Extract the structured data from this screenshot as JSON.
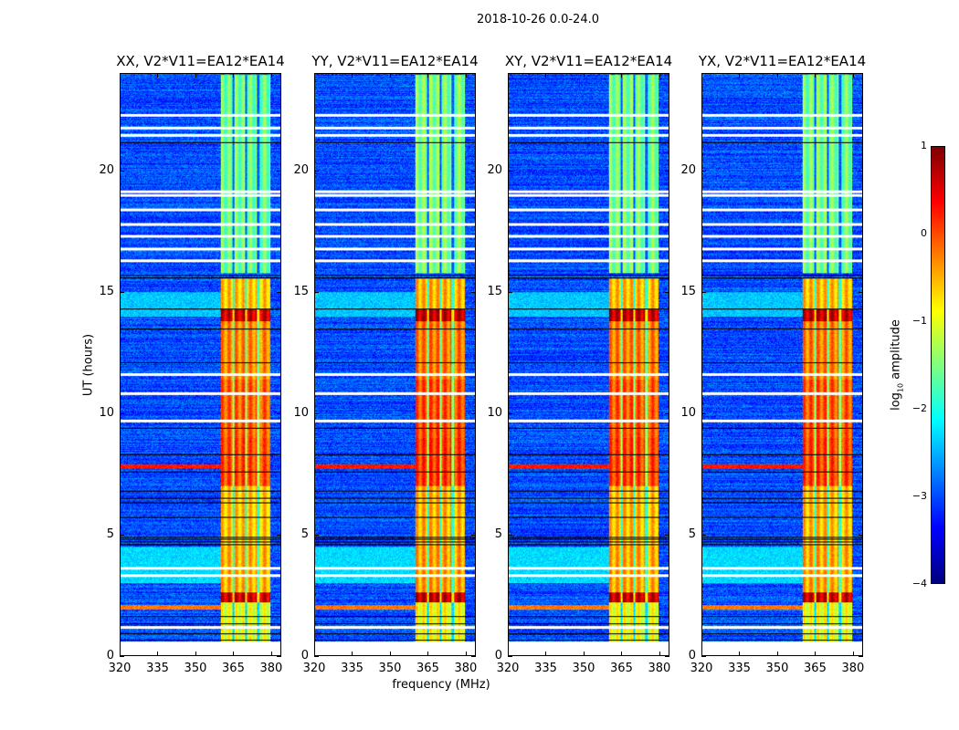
{
  "chart_data": {
    "type": "heatmap",
    "title": "2018-10-26 0.0-24.0",
    "xlabel": "frequency (MHz)",
    "ylabel": "UT (hours)",
    "xlim": [
      320,
      384
    ],
    "ylim": [
      0,
      24
    ],
    "xticks": [
      320,
      335,
      350,
      365,
      380
    ],
    "yticks": [
      0,
      5,
      10,
      15,
      20
    ],
    "colormap": "jet",
    "panels": [
      {
        "title": "XX, V2*V11=EA12*EA14",
        "band_offset": 0.0
      },
      {
        "title": "YY, V2*V11=EA12*EA14",
        "band_offset": 0.1
      },
      {
        "title": "XY, V2*V11=EA12*EA14",
        "band_offset": 0.05
      },
      {
        "title": "YX, V2*V11=EA12*EA14",
        "band_offset": 0.05
      }
    ],
    "colorbar": {
      "label_main": "log",
      "label_sub": "10",
      "label_rest": " amplitude",
      "range": [
        -4,
        1
      ],
      "ticks": [
        1,
        0,
        -1,
        -2,
        -3,
        -4
      ],
      "tick_labels": [
        "1",
        "0",
        "−1",
        "−2",
        "−3",
        "−4"
      ]
    },
    "background_log_amp": -3.0,
    "data_start_hour": 0.6,
    "rfi_band_mhz": [
      360,
      380
    ],
    "rfi_gap_mhz": [
      365,
      370,
      375
    ],
    "band_segments": [
      {
        "hours": [
          0.6,
          2.2
        ],
        "log_amp": -1.0
      },
      {
        "hours": [
          2.2,
          2.6
        ],
        "log_amp": 0.6
      },
      {
        "hours": [
          2.6,
          4.6
        ],
        "log_amp": -0.5
      },
      {
        "hours": [
          4.6,
          7.0
        ],
        "log_amp": -0.6
      },
      {
        "hours": [
          7.0,
          9.0
        ],
        "log_amp": 0.0
      },
      {
        "hours": [
          9.0,
          11.4
        ],
        "log_amp": -0.1
      },
      {
        "hours": [
          11.4,
          13.8
        ],
        "log_amp": -0.3
      },
      {
        "hours": [
          13.8,
          14.3
        ],
        "log_amp": 0.6
      },
      {
        "hours": [
          14.3,
          15.6
        ],
        "log_amp": -0.6
      },
      {
        "hours": [
          15.8,
          24.0
        ],
        "log_amp": -1.6
      }
    ],
    "low_freq_segments": [
      {
        "hours": [
          1.9,
          2.1
        ],
        "log_amp": -0.2
      },
      {
        "hours": [
          3.0,
          4.5
        ],
        "log_amp": -2.3
      },
      {
        "hours": [
          7.7,
          7.9
        ],
        "log_amp": 0.3
      },
      {
        "hours": [
          14.0,
          15.0
        ],
        "log_amp": -2.4
      }
    ],
    "flagged_white_hours": [
      0.0,
      0.3,
      1.15,
      3.3,
      3.6,
      9.7,
      10.8,
      11.6,
      16.3,
      16.8,
      17.3,
      17.8,
      18.4,
      19.0,
      19.15,
      21.5,
      21.8,
      22.3
    ],
    "flagged_black_hours": [
      0.65,
      0.9,
      1.3,
      1.6,
      4.6,
      4.7,
      4.8,
      4.9,
      5.7,
      6.3,
      6.5,
      6.8,
      7.6,
      8.3,
      9.4,
      12.1,
      13.5,
      14.3,
      15.6,
      15.7,
      21.2
    ]
  }
}
